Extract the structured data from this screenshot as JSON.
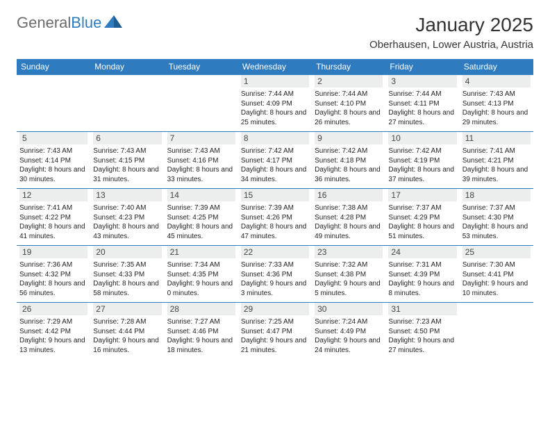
{
  "brand": {
    "part1": "General",
    "part2": "Blue"
  },
  "title": "January 2025",
  "location": "Oberhausen, Lower Austria, Austria",
  "colors": {
    "header_bg": "#2f7bbf",
    "header_text": "#ffffff",
    "daynum_bg": "#eceded",
    "text": "#222222",
    "page_bg": "#ffffff",
    "logo_gray": "#6b6b6b",
    "logo_blue": "#2f7bbf"
  },
  "day_headers": [
    "Sunday",
    "Monday",
    "Tuesday",
    "Wednesday",
    "Thursday",
    "Friday",
    "Saturday"
  ],
  "weeks": [
    [
      {
        "num": "",
        "sunrise": "",
        "sunset": "",
        "daylight": ""
      },
      {
        "num": "",
        "sunrise": "",
        "sunset": "",
        "daylight": ""
      },
      {
        "num": "",
        "sunrise": "",
        "sunset": "",
        "daylight": ""
      },
      {
        "num": "1",
        "sunrise": "Sunrise: 7:44 AM",
        "sunset": "Sunset: 4:09 PM",
        "daylight": "Daylight: 8 hours and 25 minutes."
      },
      {
        "num": "2",
        "sunrise": "Sunrise: 7:44 AM",
        "sunset": "Sunset: 4:10 PM",
        "daylight": "Daylight: 8 hours and 26 minutes."
      },
      {
        "num": "3",
        "sunrise": "Sunrise: 7:44 AM",
        "sunset": "Sunset: 4:11 PM",
        "daylight": "Daylight: 8 hours and 27 minutes."
      },
      {
        "num": "4",
        "sunrise": "Sunrise: 7:43 AM",
        "sunset": "Sunset: 4:13 PM",
        "daylight": "Daylight: 8 hours and 29 minutes."
      }
    ],
    [
      {
        "num": "5",
        "sunrise": "Sunrise: 7:43 AM",
        "sunset": "Sunset: 4:14 PM",
        "daylight": "Daylight: 8 hours and 30 minutes."
      },
      {
        "num": "6",
        "sunrise": "Sunrise: 7:43 AM",
        "sunset": "Sunset: 4:15 PM",
        "daylight": "Daylight: 8 hours and 31 minutes."
      },
      {
        "num": "7",
        "sunrise": "Sunrise: 7:43 AM",
        "sunset": "Sunset: 4:16 PM",
        "daylight": "Daylight: 8 hours and 33 minutes."
      },
      {
        "num": "8",
        "sunrise": "Sunrise: 7:42 AM",
        "sunset": "Sunset: 4:17 PM",
        "daylight": "Daylight: 8 hours and 34 minutes."
      },
      {
        "num": "9",
        "sunrise": "Sunrise: 7:42 AM",
        "sunset": "Sunset: 4:18 PM",
        "daylight": "Daylight: 8 hours and 36 minutes."
      },
      {
        "num": "10",
        "sunrise": "Sunrise: 7:42 AM",
        "sunset": "Sunset: 4:19 PM",
        "daylight": "Daylight: 8 hours and 37 minutes."
      },
      {
        "num": "11",
        "sunrise": "Sunrise: 7:41 AM",
        "sunset": "Sunset: 4:21 PM",
        "daylight": "Daylight: 8 hours and 39 minutes."
      }
    ],
    [
      {
        "num": "12",
        "sunrise": "Sunrise: 7:41 AM",
        "sunset": "Sunset: 4:22 PM",
        "daylight": "Daylight: 8 hours and 41 minutes."
      },
      {
        "num": "13",
        "sunrise": "Sunrise: 7:40 AM",
        "sunset": "Sunset: 4:23 PM",
        "daylight": "Daylight: 8 hours and 43 minutes."
      },
      {
        "num": "14",
        "sunrise": "Sunrise: 7:39 AM",
        "sunset": "Sunset: 4:25 PM",
        "daylight": "Daylight: 8 hours and 45 minutes."
      },
      {
        "num": "15",
        "sunrise": "Sunrise: 7:39 AM",
        "sunset": "Sunset: 4:26 PM",
        "daylight": "Daylight: 8 hours and 47 minutes."
      },
      {
        "num": "16",
        "sunrise": "Sunrise: 7:38 AM",
        "sunset": "Sunset: 4:28 PM",
        "daylight": "Daylight: 8 hours and 49 minutes."
      },
      {
        "num": "17",
        "sunrise": "Sunrise: 7:37 AM",
        "sunset": "Sunset: 4:29 PM",
        "daylight": "Daylight: 8 hours and 51 minutes."
      },
      {
        "num": "18",
        "sunrise": "Sunrise: 7:37 AM",
        "sunset": "Sunset: 4:30 PM",
        "daylight": "Daylight: 8 hours and 53 minutes."
      }
    ],
    [
      {
        "num": "19",
        "sunrise": "Sunrise: 7:36 AM",
        "sunset": "Sunset: 4:32 PM",
        "daylight": "Daylight: 8 hours and 56 minutes."
      },
      {
        "num": "20",
        "sunrise": "Sunrise: 7:35 AM",
        "sunset": "Sunset: 4:33 PM",
        "daylight": "Daylight: 8 hours and 58 minutes."
      },
      {
        "num": "21",
        "sunrise": "Sunrise: 7:34 AM",
        "sunset": "Sunset: 4:35 PM",
        "daylight": "Daylight: 9 hours and 0 minutes."
      },
      {
        "num": "22",
        "sunrise": "Sunrise: 7:33 AM",
        "sunset": "Sunset: 4:36 PM",
        "daylight": "Daylight: 9 hours and 3 minutes."
      },
      {
        "num": "23",
        "sunrise": "Sunrise: 7:32 AM",
        "sunset": "Sunset: 4:38 PM",
        "daylight": "Daylight: 9 hours and 5 minutes."
      },
      {
        "num": "24",
        "sunrise": "Sunrise: 7:31 AM",
        "sunset": "Sunset: 4:39 PM",
        "daylight": "Daylight: 9 hours and 8 minutes."
      },
      {
        "num": "25",
        "sunrise": "Sunrise: 7:30 AM",
        "sunset": "Sunset: 4:41 PM",
        "daylight": "Daylight: 9 hours and 10 minutes."
      }
    ],
    [
      {
        "num": "26",
        "sunrise": "Sunrise: 7:29 AM",
        "sunset": "Sunset: 4:42 PM",
        "daylight": "Daylight: 9 hours and 13 minutes."
      },
      {
        "num": "27",
        "sunrise": "Sunrise: 7:28 AM",
        "sunset": "Sunset: 4:44 PM",
        "daylight": "Daylight: 9 hours and 16 minutes."
      },
      {
        "num": "28",
        "sunrise": "Sunrise: 7:27 AM",
        "sunset": "Sunset: 4:46 PM",
        "daylight": "Daylight: 9 hours and 18 minutes."
      },
      {
        "num": "29",
        "sunrise": "Sunrise: 7:25 AM",
        "sunset": "Sunset: 4:47 PM",
        "daylight": "Daylight: 9 hours and 21 minutes."
      },
      {
        "num": "30",
        "sunrise": "Sunrise: 7:24 AM",
        "sunset": "Sunset: 4:49 PM",
        "daylight": "Daylight: 9 hours and 24 minutes."
      },
      {
        "num": "31",
        "sunrise": "Sunrise: 7:23 AM",
        "sunset": "Sunset: 4:50 PM",
        "daylight": "Daylight: 9 hours and 27 minutes."
      },
      {
        "num": "",
        "sunrise": "",
        "sunset": "",
        "daylight": ""
      }
    ]
  ]
}
